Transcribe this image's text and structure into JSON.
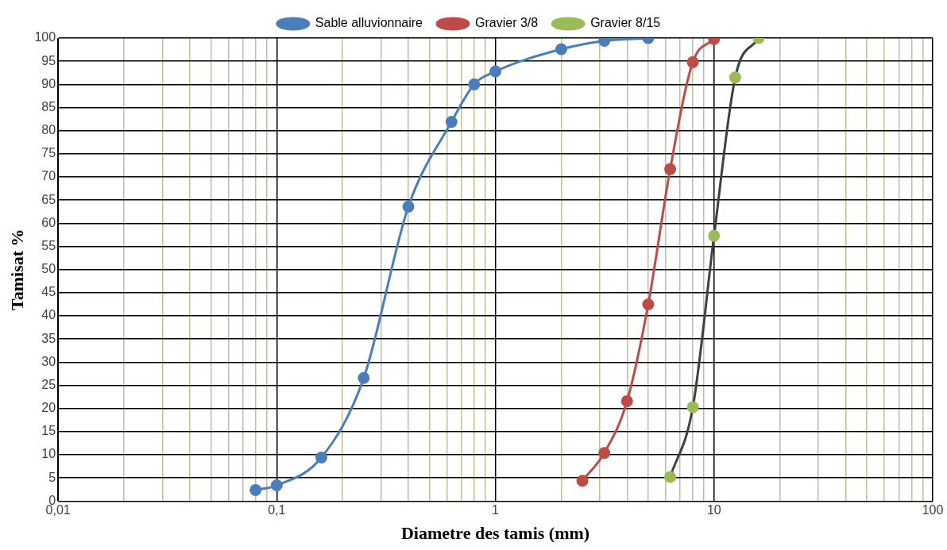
{
  "chart_data": {
    "type": "line",
    "xlabel": "Diametre des tamis (mm)",
    "ylabel": "Tamisat %",
    "log": "x",
    "grid": true,
    "legend": "top",
    "marker": "circle",
    "line_style": "solid",
    "xlim": [
      0.01,
      100
    ],
    "xticks": [
      {
        "value": 0.01,
        "label": "0,01"
      },
      {
        "value": 0.02,
        "label": null
      },
      {
        "value": 0.03,
        "label": null
      },
      {
        "value": 0.04,
        "label": null
      },
      {
        "value": 0.05,
        "label": null
      },
      {
        "value": 0.06,
        "label": null
      },
      {
        "value": 0.07,
        "label": null
      },
      {
        "value": 0.08,
        "label": null
      },
      {
        "value": 0.09,
        "label": null
      },
      {
        "value": 0.1,
        "label": "0,1"
      },
      {
        "value": 0.2,
        "label": null
      },
      {
        "value": 0.3,
        "label": null
      },
      {
        "value": 0.4,
        "label": null
      },
      {
        "value": 0.5,
        "label": null
      },
      {
        "value": 0.6,
        "label": null
      },
      {
        "value": 0.7,
        "label": null
      },
      {
        "value": 0.8,
        "label": null
      },
      {
        "value": 0.9,
        "label": null
      },
      1,
      {
        "value": 2,
        "label": null
      },
      {
        "value": 3,
        "label": null
      },
      {
        "value": 4,
        "label": null
      },
      {
        "value": 5,
        "label": null
      },
      {
        "value": 6,
        "label": null
      },
      {
        "value": 7,
        "label": null
      },
      {
        "value": 8,
        "label": null
      },
      {
        "value": 9,
        "label": null
      },
      10,
      {
        "value": 20,
        "label": null
      },
      {
        "value": 30,
        "label": null
      },
      {
        "value": 40,
        "label": null
      },
      {
        "value": 50,
        "label": null
      },
      {
        "value": 60,
        "label": null
      },
      {
        "value": 70,
        "label": null
      },
      {
        "value": 80,
        "label": null
      },
      {
        "value": 90,
        "label": null
      },
      100
    ],
    "ylim": [
      0,
      100
    ],
    "yticks": [
      0,
      5,
      10,
      15,
      20,
      25,
      30,
      35,
      40,
      45,
      50,
      55,
      60,
      65,
      70,
      75,
      80,
      85,
      90,
      95,
      100
    ],
    "series": [
      {
        "name": "Sable alluvionnaire",
        "color": "#4a7ebb",
        "x": [
          0.08,
          0.1,
          0.16,
          0.25,
          0.4,
          0.63,
          0.8,
          1,
          2,
          3.15,
          5
        ],
        "values": [
          2.4,
          3.4,
          9.4,
          26.6,
          63.6,
          81.9,
          90,
          92.8,
          97.6,
          99.4,
          100
        ]
      },
      {
        "name": "Gravier 3/8",
        "color": "#be4b48",
        "x": [
          2.5,
          3.15,
          4,
          5,
          6.3,
          8,
          10
        ],
        "values": [
          4.4,
          10.4,
          21.6,
          42.5,
          71.7,
          94.8,
          99.8
        ]
      },
      {
        "name": "Gravier 8/15",
        "color": "#404040",
        "colors": [
          "#9bbb59",
          "#9bbb59",
          "#9bbb59",
          "#9bbb59",
          "#9bbb59"
        ],
        "x": [
          6.3,
          8,
          10,
          12.5,
          16
        ],
        "values": [
          5.2,
          20.3,
          57.3,
          91.5,
          100
        ]
      }
    ]
  }
}
